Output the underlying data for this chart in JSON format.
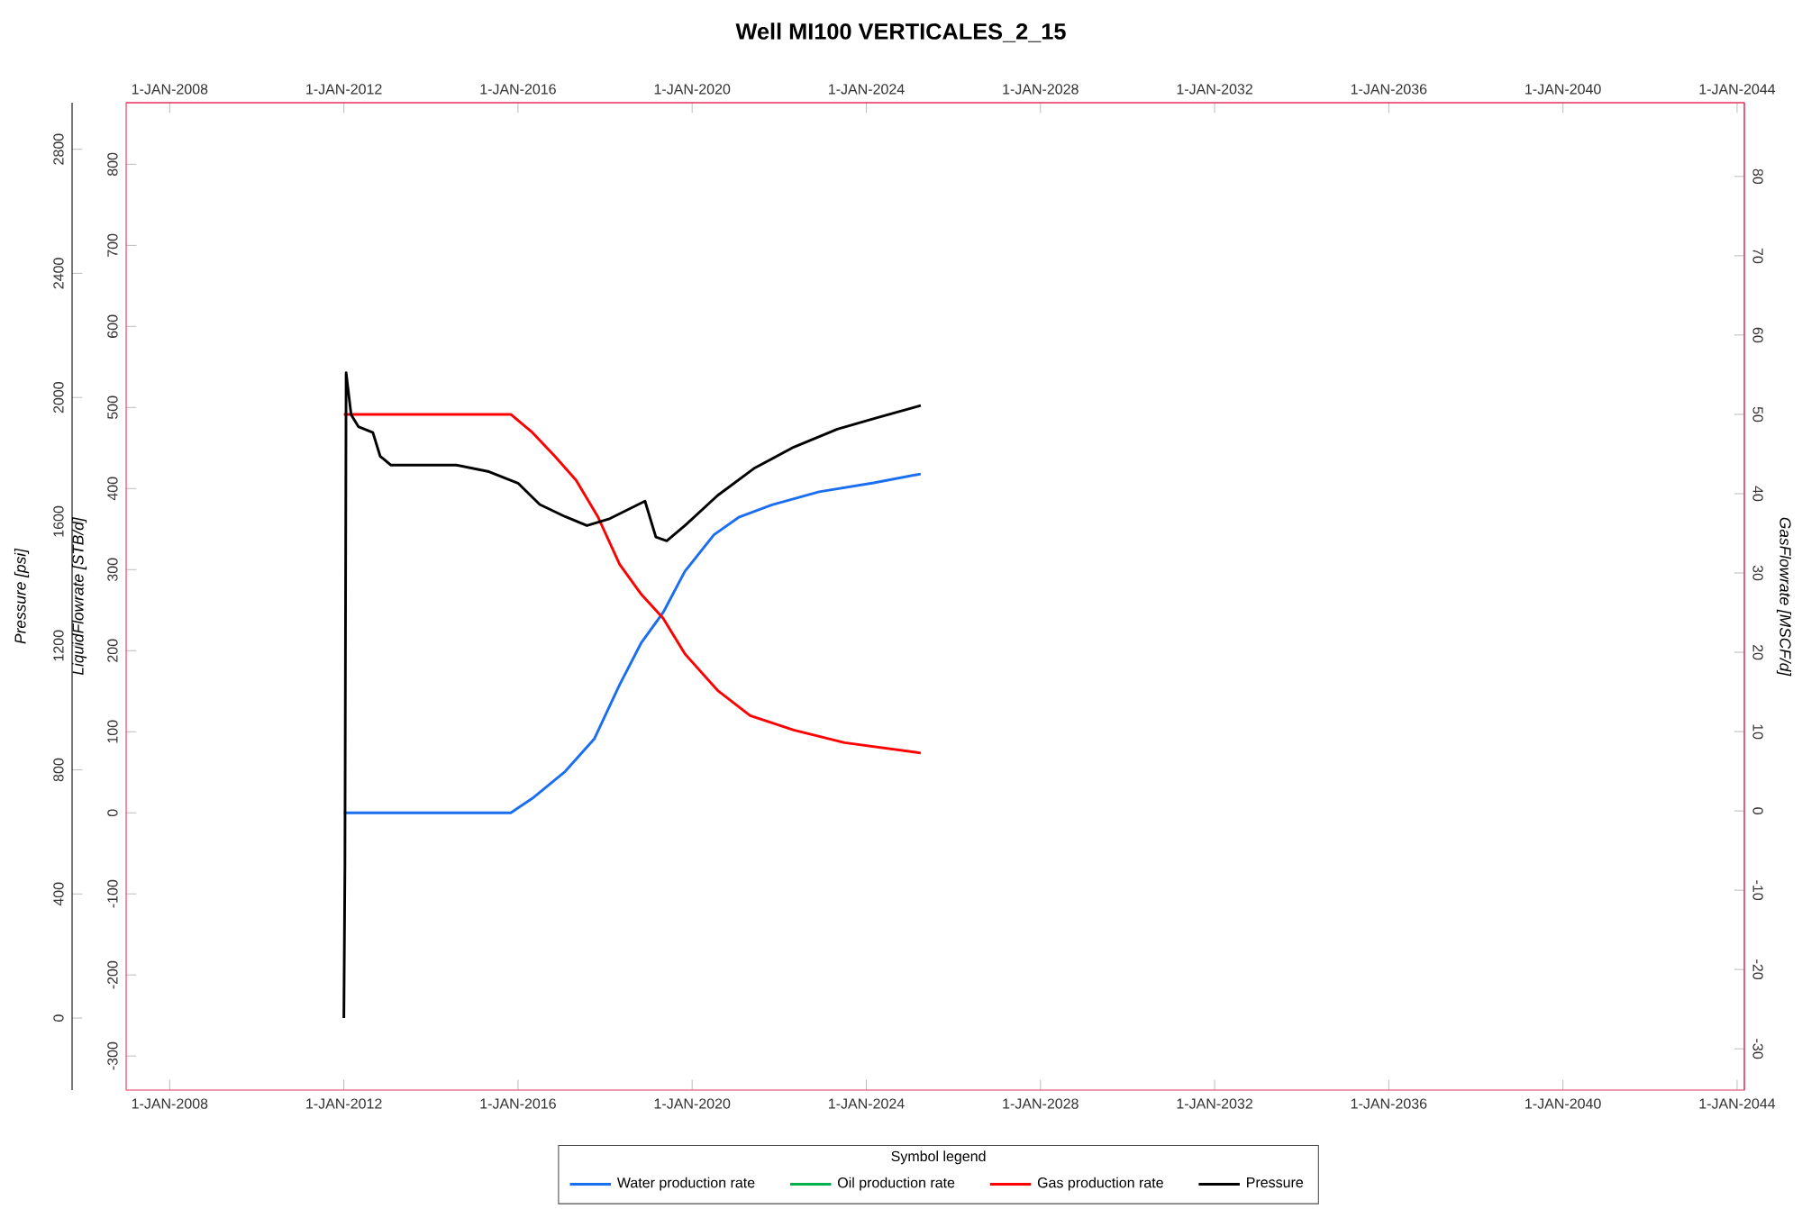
{
  "chart_data": {
    "type": "line",
    "title": "Well MI100 VERTICALES_2_15",
    "ylabel": "LiquidFlowrate [STB/d]",
    "y2label": "GasFlowrate [MSCF/d]",
    "y3label": "Pressure [psi]",
    "legend_title": "Symbol legend",
    "legend": "bottom",
    "marker": "none",
    "line_style": "solid",
    "xlim": [
      "2007-01-01",
      "2044-03-01"
    ],
    "xticks": [
      {
        "value": "2008-01-01",
        "label": "1-JAN-2008"
      },
      {
        "value": "2012-01-01",
        "label": "1-JAN-2012"
      },
      {
        "value": "2016-01-01",
        "label": "1-JAN-2016"
      },
      {
        "value": "2020-01-01",
        "label": "1-JAN-2020"
      },
      {
        "value": "2024-01-01",
        "label": "1-JAN-2024"
      },
      {
        "value": "2028-01-01",
        "label": "1-JAN-2028"
      },
      {
        "value": "2032-01-01",
        "label": "1-JAN-2032"
      },
      {
        "value": "2036-01-01",
        "label": "1-JAN-2036"
      },
      {
        "value": "2040-01-01",
        "label": "1-JAN-2040"
      },
      {
        "value": "2044-01-01",
        "label": "1-JAN-2044"
      }
    ],
    "x2lim": [
      "2007-01-01",
      "2044-03-01"
    ],
    "x2ticks": [
      {
        "value": "2008-01-01",
        "label": "1-JAN-2008"
      },
      {
        "value": "2012-01-01",
        "label": "1-JAN-2012"
      },
      {
        "value": "2016-01-01",
        "label": "1-JAN-2016"
      },
      {
        "value": "2020-01-01",
        "label": "1-JAN-2020"
      },
      {
        "value": "2024-01-01",
        "label": "1-JAN-2024"
      },
      {
        "value": "2028-01-01",
        "label": "1-JAN-2028"
      },
      {
        "value": "2032-01-01",
        "label": "1-JAN-2032"
      },
      {
        "value": "2036-01-01",
        "label": "1-JAN-2036"
      },
      {
        "value": "2040-01-01",
        "label": "1-JAN-2040"
      },
      {
        "value": "2044-01-01",
        "label": "1-JAN-2044"
      }
    ],
    "ylim": [
      -342,
      876
    ],
    "yticks": [
      -300,
      -200,
      -100,
      0,
      100,
      200,
      300,
      400,
      500,
      600,
      700,
      800
    ],
    "y2lim": [
      -35.2,
      89.3
    ],
    "y2ticks": [
      -30,
      -20,
      -10,
      0,
      10,
      20,
      30,
      40,
      50,
      60,
      70,
      80
    ],
    "y3lim": [
      -232,
      2950
    ],
    "y3ticks": [
      0,
      400,
      800,
      1200,
      1600,
      2000,
      2400,
      2800
    ],
    "series": [
      {
        "name": "Water production rate",
        "color": "#1a6ef0",
        "axis": "y",
        "x": [
          "2012-01",
          "2015-11",
          "2016-05",
          "2017-02",
          "2017-10",
          "2018-05",
          "2018-11",
          "2019-05",
          "2019-11",
          "2020-07",
          "2021-02",
          "2021-11",
          "2022-12",
          "2024-03",
          "2025-04"
        ],
        "values": [
          0,
          0,
          18,
          51,
          91,
          158,
          210,
          247,
          298,
          343,
          365,
          380,
          396,
          407,
          418
        ]
      },
      {
        "name": "Oil production rate",
        "color": "#00b050",
        "axis": "y"
      },
      {
        "name": "Gas production rate",
        "color": "#ff0000",
        "axis": "y2",
        "x": [
          "2012-01",
          "2015-11",
          "2016-05",
          "2016-11",
          "2017-05",
          "2017-11",
          "2018-05",
          "2018-11",
          "2019-05",
          "2019-11",
          "2020-08",
          "2021-05",
          "2022-05",
          "2023-07",
          "2025-04"
        ],
        "values": [
          50,
          50,
          47.7,
          44.8,
          41.7,
          37.1,
          31.1,
          27.3,
          24.3,
          19.8,
          15.2,
          12.0,
          10.2,
          8.6,
          7.3
        ]
      },
      {
        "name": "Pressure",
        "color": "#000000",
        "axis": "y3",
        "x": [
          "2012-01-01",
          "2012-01-10",
          "2012-01-20",
          "2012-03",
          "2012-05",
          "2012-09",
          "2012-11",
          "2013-02",
          "2013-08",
          "2014-08",
          "2015-05",
          "2016-01",
          "2016-07",
          "2017-02",
          "2017-08",
          "2018-02",
          "2018-12",
          "2019-03",
          "2019-06",
          "2019-11",
          "2020-08",
          "2021-06",
          "2022-05",
          "2023-05",
          "2024-04",
          "2025-04"
        ],
        "values": [
          0,
          493,
          2080,
          1945,
          1906,
          1887,
          1811,
          1782,
          1782,
          1782,
          1761,
          1724,
          1655,
          1616,
          1587,
          1608,
          1666,
          1550,
          1538,
          1587,
          1684,
          1771,
          1840,
          1898,
          1935,
          1974
        ]
      }
    ]
  }
}
